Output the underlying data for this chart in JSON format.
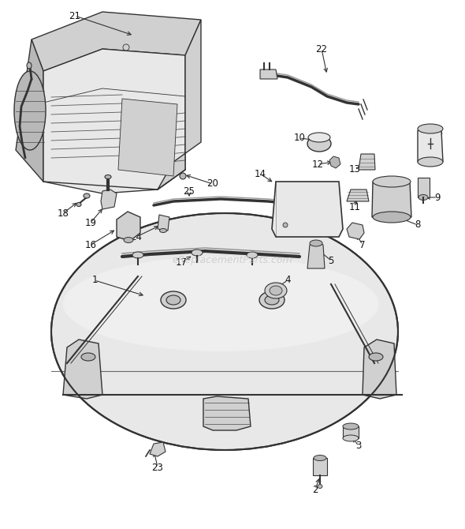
{
  "bg_color": "#ffffff",
  "line_color": "#333333",
  "label_color": "#111111",
  "watermark": "eReplacementParts.com",
  "fig_w": 5.9,
  "fig_h": 6.7,
  "dpi": 100
}
